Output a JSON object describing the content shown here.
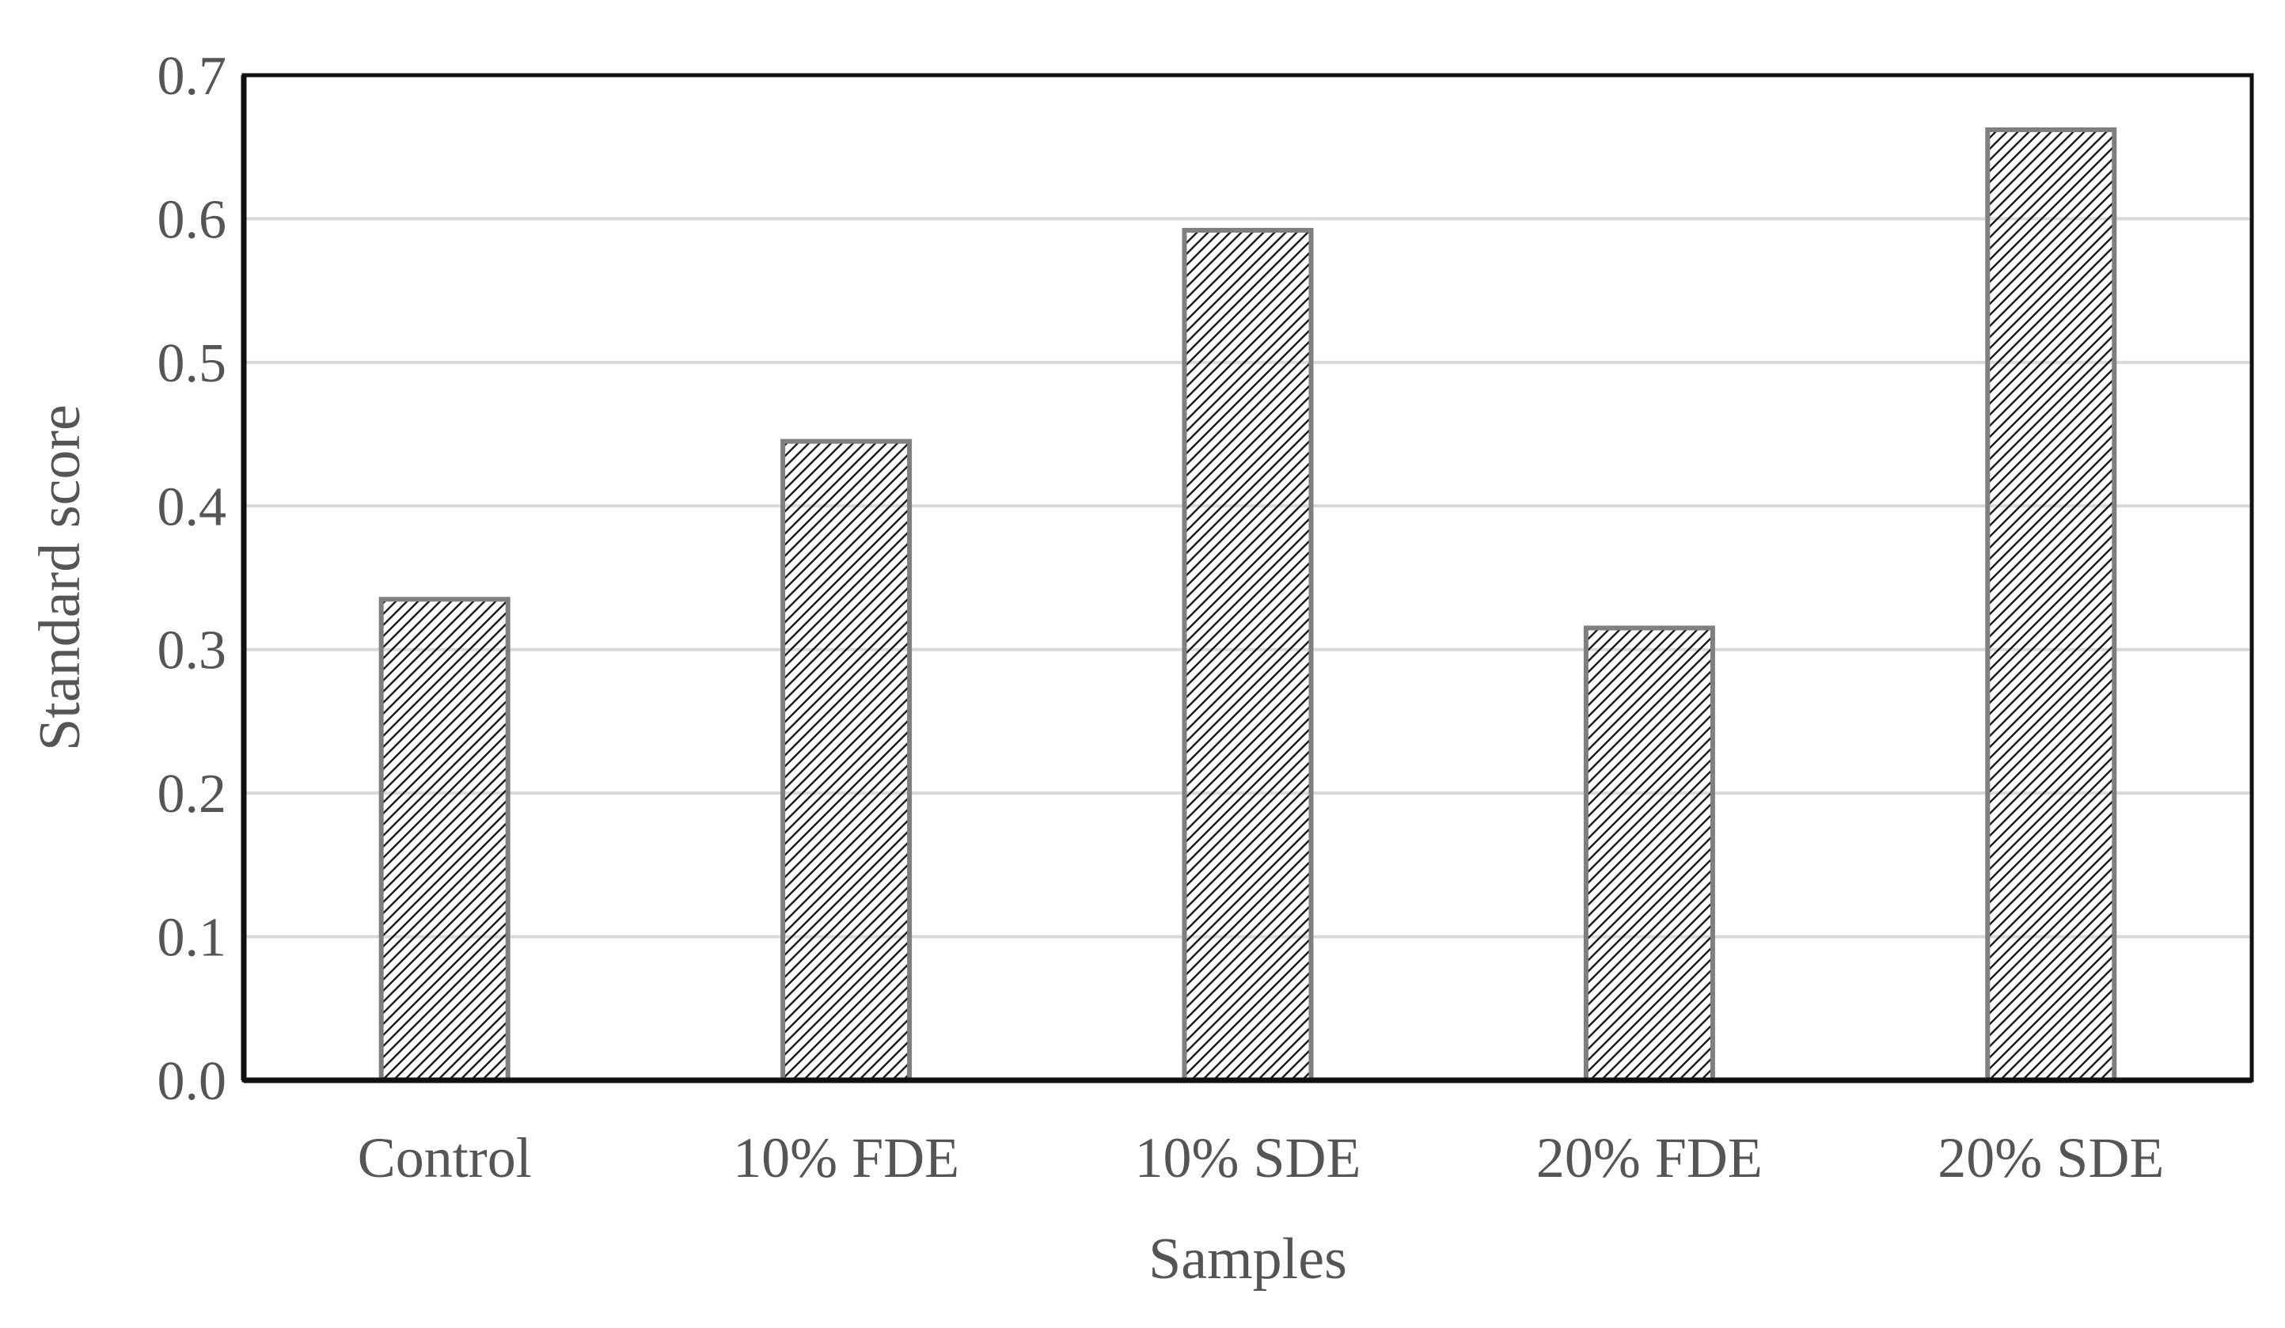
{
  "chart_data": {
    "type": "bar",
    "title": "",
    "xlabel": "Samples",
    "ylabel": "Standard score",
    "categories": [
      "Control",
      "10% FDE",
      "10% SDE",
      "20% FDE",
      "20% SDE"
    ],
    "values": [
      0.335,
      0.445,
      0.592,
      0.315,
      0.662
    ],
    "ylim": [
      0,
      0.7
    ],
    "yticks": [
      "0.0",
      "0.1",
      "0.2",
      "0.3",
      "0.4",
      "0.5",
      "0.6",
      "0.7"
    ],
    "grid": true,
    "legend": "none",
    "bar_pattern": "diagonal-hatch",
    "colors": {
      "bar_edge": "#7f7f7f",
      "hatch": "#1a1a1a",
      "grid": "#d9d9d9",
      "axis": "#111111",
      "text": "#555555"
    }
  }
}
